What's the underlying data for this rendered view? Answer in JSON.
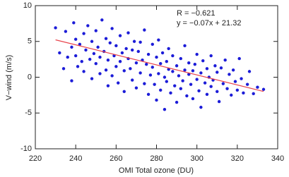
{
  "chart_data": {
    "type": "scatter",
    "xlabel": "OMI Total ozone (DU)",
    "ylabel": "V−wind (m/s)",
    "annotations": [
      "R = −0.621",
      "y = −0.07x + 21.32"
    ],
    "color": "#1c1cd8",
    "xlim": [
      220,
      340
    ],
    "xticks": [
      220,
      240,
      260,
      280,
      300,
      320,
      340
    ],
    "ylim": [
      -10,
      10
    ],
    "yticks": [
      -10,
      -5,
      0,
      5,
      10
    ],
    "x": [
      230,
      232,
      234,
      235,
      236,
      238,
      238,
      239,
      240,
      240,
      241,
      242,
      243,
      244,
      244,
      245,
      246,
      247,
      248,
      248,
      249,
      250,
      250,
      251,
      252,
      252,
      253,
      254,
      255,
      255,
      256,
      256,
      257,
      258,
      258,
      259,
      260,
      260,
      261,
      262,
      262,
      263,
      264,
      264,
      265,
      266,
      266,
      267,
      268,
      268,
      269,
      270,
      270,
      271,
      272,
      272,
      273,
      274,
      274,
      275,
      276,
      276,
      277,
      278,
      278,
      279,
      280,
      280,
      281,
      281,
      282,
      282,
      283,
      284,
      284,
      285,
      285,
      286,
      286,
      287,
      288,
      288,
      289,
      290,
      290,
      291,
      292,
      292,
      293,
      294,
      294,
      295,
      296,
      296,
      297,
      298,
      298,
      299,
      300,
      300,
      301,
      302,
      302,
      303,
      304,
      305,
      305,
      306,
      307,
      307,
      308,
      309,
      310,
      310,
      311,
      312,
      313,
      314,
      315,
      316,
      317,
      318,
      319,
      320,
      321,
      322,
      323,
      325,
      326,
      328,
      330,
      333
    ],
    "values": [
      6.9,
      3.4,
      1.2,
      6.4,
      2.8,
      4.2,
      -0.5,
      7.6,
      3.0,
      5.3,
      1.5,
      4.6,
      2.2,
      6.1,
      0.8,
      3.8,
      7.2,
      2.5,
      5.0,
      -0.2,
      3.3,
      1.9,
      6.5,
      4.2,
      0.5,
      2.8,
      8.0,
      3.6,
      1.0,
      5.4,
      -1.2,
      2.4,
      4.8,
      0.2,
      6.8,
      3.0,
      1.5,
      4.4,
      -0.8,
      2.2,
      5.8,
      3.4,
      0.9,
      -2.0,
      4.0,
      2.6,
      6.2,
      1.2,
      3.8,
      -0.4,
      5.0,
      2.0,
      -1.5,
      3.6,
      0.6,
      4.9,
      2.4,
      -0.9,
      6.6,
      1.8,
      3.2,
      -2.4,
      0.3,
      4.6,
      1.4,
      -1.0,
      2.8,
      -3.2,
      0.5,
      5.2,
      1.9,
      -1.8,
      3.4,
      0.0,
      -4.5,
      2.2,
      -0.6,
      4.0,
      1.1,
      -2.2,
      0.8,
      3.0,
      -1.2,
      1.6,
      -3.5,
      0.2,
      2.6,
      -1.6,
      -0.5,
      1.0,
      4.4,
      -2.6,
      0.4,
      2.0,
      -1.0,
      0.9,
      -3.0,
      1.8,
      -0.3,
      3.2,
      -1.9,
      0.6,
      -4.2,
      2.3,
      -0.8,
      1.2,
      -2.4,
      0.0,
      3.0,
      -1.3,
      -0.4,
      1.6,
      -2.0,
      0.7,
      -3.4,
      1.3,
      -0.9,
      2.4,
      -1.6,
      0.4,
      -2.5,
      1.0,
      -0.6,
      -1.8,
      2.6,
      -0.2,
      -2.2,
      -1.0,
      0.8,
      -2.3,
      -1.4,
      -1.7
    ],
    "fit_line": {
      "x": [
        230,
        333
      ],
      "values": [
        5.22,
        -1.99
      ],
      "color": "#e8434b"
    }
  }
}
